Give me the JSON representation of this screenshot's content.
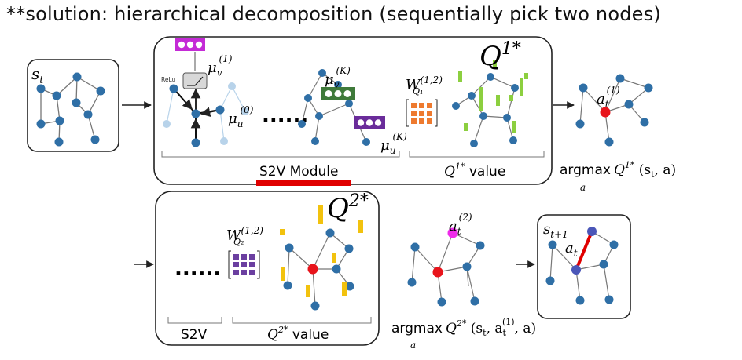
{
  "title": "**solution: hierarchical decomposition (sequentially pick two nodes)",
  "state_label": "s",
  "state_label_sub": "t",
  "next_state_label": "s",
  "next_state_label_sub": "t+1",
  "action_edge_label": "a",
  "action_edge_label_sub": "t",
  "top_row": {
    "q_big": "Q",
    "q_big_sup": "1*",
    "relu": "ReLu",
    "mu_v1": "μ",
    "mu_v1_sub": "v",
    "mu_v1_sup": "(1)",
    "mu_u0": "μ",
    "mu_u0_sub": "u",
    "mu_u0_sup": "(0)",
    "mu_vK": "μ",
    "mu_vK_sub": "v",
    "mu_vK_sup": "(K)",
    "mu_uK": "μ",
    "mu_uK_sub": "u",
    "mu_uK_sup": "(K)",
    "ellipsis": "......",
    "weight": "W",
    "weight_sup": "(1,2)",
    "weight_sub": "Q₁",
    "s2v_module": "S2V Module",
    "q_value": "Q",
    "q_value_sup": "1*",
    "q_value_word": " value",
    "argmax": "argmax",
    "argmax_sub": "a",
    "argmax_expr": "Q",
    "argmax_expr_sup": "1*",
    "argmax_args": " (s",
    "argmax_args_sub": "t",
    "argmax_args_end": ", a)",
    "picked": "a",
    "picked_sub": "t",
    "picked_sup": "(1)"
  },
  "bottom_row": {
    "q_big": "Q",
    "q_big_sup": "2*",
    "ellipsis": "......",
    "weight": "W",
    "weight_sup": "(1,2)",
    "weight_sub": "Q₂",
    "s2v": "S2V",
    "q_value": "Q",
    "q_value_sup": "2*",
    "q_value_word": " value",
    "argmax": "argmax",
    "argmax_sub": "a",
    "argmax_expr": "Q",
    "argmax_expr_sup": "2*",
    "argmax_args": " (s",
    "argmax_args_sub": "t",
    "argmax_a1": ", a",
    "argmax_a1_sub": "t",
    "argmax_a1_sup": "(1)",
    "argmax_end": ", a)",
    "picked": "a",
    "picked_sub": "t",
    "picked_sup": "(2)"
  },
  "colors": {
    "node": "#2f6fa6",
    "node_light": "#b8d3ea",
    "edge": "#777777",
    "selected_1": "#e8141b",
    "selected_2": "#ee2bea",
    "q1_bars": "#8ccf3f",
    "q2_bars": "#f2c20e",
    "weight_orange": "#ee7a2f",
    "weight_purple": "#6b3fa0",
    "vec_magenta": "#c42bd6",
    "vec_green": "#3f7a3a",
    "vec_purple": "#6a2c9a",
    "red_bar": "#e00000"
  }
}
